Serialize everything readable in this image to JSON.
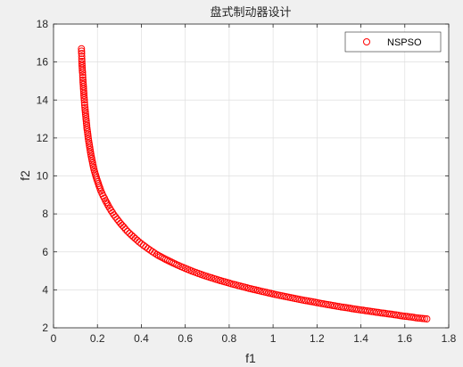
{
  "chart_data": {
    "type": "scatter",
    "title": "盘式制动器设计",
    "xlabel": "f1",
    "ylabel": "f2",
    "xlim": [
      0,
      1.8
    ],
    "ylim": [
      2,
      18
    ],
    "xticks": [
      "0",
      "0.2",
      "0.4",
      "0.6",
      "0.8",
      "1",
      "1.2",
      "1.4",
      "1.6",
      "1.8"
    ],
    "yticks": [
      "2",
      "4",
      "6",
      "8",
      "10",
      "12",
      "14",
      "16",
      "18"
    ],
    "grid": true,
    "legend_position": "top-right",
    "series": [
      {
        "name": "NSPSO",
        "marker": "circle-open",
        "color": "#ff0000",
        "x": [
          0.127,
          0.128,
          0.129,
          0.13,
          0.132,
          0.134,
          0.136,
          0.138,
          0.14,
          0.143,
          0.146,
          0.149,
          0.152,
          0.156,
          0.16,
          0.165,
          0.17,
          0.176,
          0.182,
          0.19,
          0.198,
          0.207,
          0.216,
          0.226,
          0.237,
          0.25,
          0.262,
          0.275,
          0.29,
          0.305,
          0.32,
          0.337,
          0.355,
          0.372,
          0.39,
          0.41,
          0.43,
          0.45,
          0.47,
          0.495,
          0.52,
          0.545,
          0.57,
          0.6,
          0.63,
          0.66,
          0.69,
          0.72,
          0.75,
          0.78,
          0.81,
          0.84,
          0.87,
          0.9,
          0.93,
          0.96,
          0.99,
          1.02,
          1.05,
          1.08,
          1.11,
          1.14,
          1.18,
          1.22,
          1.25,
          1.28,
          1.31,
          1.34,
          1.37,
          1.4,
          1.43,
          1.46,
          1.49,
          1.56,
          1.58,
          1.6,
          1.63,
          1.65,
          1.7
        ],
        "y": [
          16.7,
          16.45,
          16.15,
          15.8,
          15.45,
          15.05,
          14.7,
          14.35,
          14.0,
          13.6,
          13.25,
          12.9,
          12.55,
          12.2,
          11.85,
          11.5,
          11.15,
          10.8,
          10.45,
          10.1,
          9.8,
          9.5,
          9.2,
          8.95,
          8.7,
          8.42,
          8.18,
          7.95,
          7.72,
          7.5,
          7.3,
          7.08,
          6.88,
          6.7,
          6.52,
          6.34,
          6.17,
          6.01,
          5.86,
          5.7,
          5.55,
          5.41,
          5.28,
          5.13,
          4.99,
          4.86,
          4.74,
          4.63,
          4.52,
          4.42,
          4.32,
          4.23,
          4.14,
          4.05,
          3.97,
          3.89,
          3.81,
          3.73,
          3.66,
          3.59,
          3.52,
          3.45,
          3.37,
          3.28,
          3.22,
          3.16,
          3.1,
          3.05,
          2.99,
          2.94,
          2.89,
          2.84,
          2.79,
          2.68,
          2.64,
          2.61,
          2.57,
          2.53,
          2.47
        ]
      }
    ]
  }
}
